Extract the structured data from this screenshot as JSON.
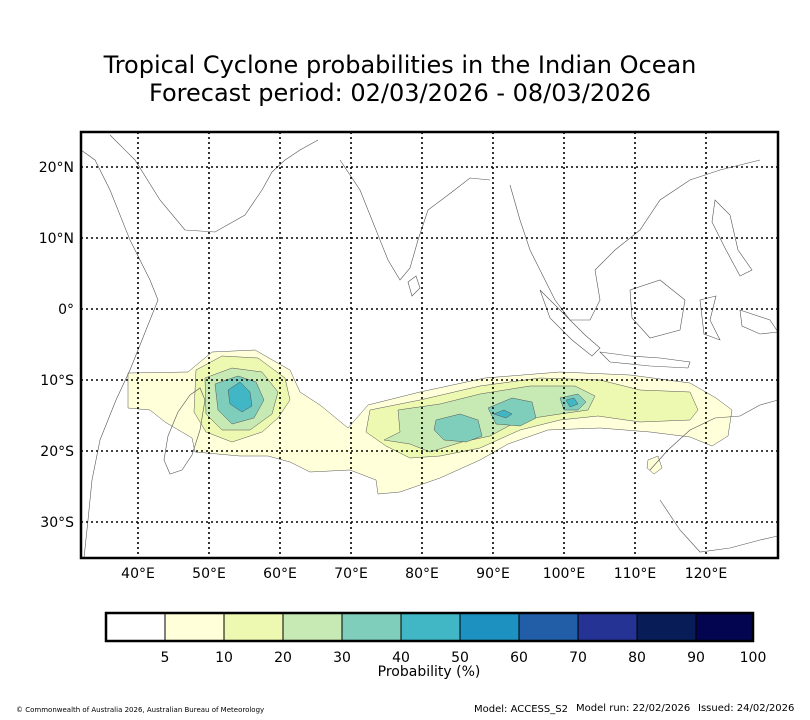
{
  "title_line1": "Tropical Cyclone probabilities in the Indian Ocean",
  "title_line2": "Forecast period: 02/03/2026 - 08/03/2026",
  "axes": {
    "lon_labels": [
      "40°E",
      "50°E",
      "60°E",
      "70°E",
      "80°E",
      "90°E",
      "100°E",
      "110°E",
      "120°E"
    ],
    "lat_labels": [
      "20°N",
      "10°N",
      "0°",
      "10°S",
      "20°S",
      "30°S"
    ],
    "lon_values": [
      40,
      50,
      60,
      70,
      80,
      90,
      100,
      110,
      120
    ],
    "lat_values": [
      20,
      10,
      0,
      -10,
      -20,
      -30
    ],
    "lon_range": [
      32,
      130
    ],
    "lat_range": [
      -35,
      25
    ]
  },
  "colorbar": {
    "label": "Probability (%)",
    "ticks": [
      "5",
      "10",
      "20",
      "30",
      "40",
      "50",
      "60",
      "70",
      "80",
      "90",
      "100"
    ],
    "colors": [
      "#ffffff",
      "#ffffd9",
      "#edf8b1",
      "#c7e9b4",
      "#7fcdbb",
      "#41b6c4",
      "#1d91c0",
      "#225ea8",
      "#253494",
      "#081d58",
      "#030550"
    ]
  },
  "regions": [
    {
      "name": "madagascar-ne-cluster",
      "center_lon": 53,
      "center_lat": -12.5,
      "peak_probability_pct": 40
    },
    {
      "name": "central-indian-ocean-band",
      "center_lon": 86,
      "center_lat": -16,
      "peak_probability_pct": 40
    },
    {
      "name": "band-east-core",
      "center_lon": 100,
      "center_lat": -13,
      "peak_probability_pct": 40
    }
  ],
  "footer": {
    "copyright": "© Commonwealth of Australia 2026, Australian Bureau of Meteorology",
    "model": "Model: ACCESS_S2",
    "model_run": "Model run: 22/02/2026",
    "issued": "Issued: 24/02/2026"
  }
}
